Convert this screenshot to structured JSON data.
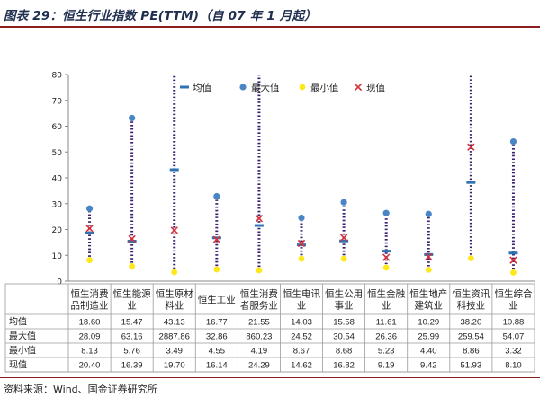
{
  "title": "图表 29：恒生行业指数 PE(TTM)（自 07 年 1 月起）",
  "source": "资料来源：Wind、国金证券研究所",
  "colors": {
    "range_line": "#3a2070",
    "avg_marker": "#2e74b5",
    "max_marker": "#4a86c5",
    "min_marker": "#ffe81a",
    "cur_marker": "#d6303a",
    "title_color": "#1f2d4f",
    "rule_color": "#8a1e1e"
  },
  "chart_data": {
    "type": "table",
    "chart_kind": "range-dot",
    "title": "图表 29：恒生行业指数 PE(TTM)（自 07 年 1 月起）",
    "ylim": [
      0,
      80
    ],
    "yticks": [
      0,
      10,
      20,
      30,
      40,
      50,
      60,
      70,
      80
    ],
    "grid": false,
    "legend_position": "top-right",
    "legend": [
      "均值",
      "最大值",
      "最小值",
      "现值"
    ],
    "categories": [
      [
        "恒生消费",
        "品制造业"
      ],
      [
        "恒生能源",
        "业"
      ],
      [
        "恒生原材",
        "料业"
      ],
      [
        "恒生工业"
      ],
      [
        "恒生消费",
        "者服务业"
      ],
      [
        "恒生电讯",
        "业"
      ],
      [
        "恒生公用",
        "事业"
      ],
      [
        "恒生金融",
        "业"
      ],
      [
        "恒生地产",
        "建筑业"
      ],
      [
        "恒生资讯",
        "科技业"
      ],
      [
        "恒生综合",
        "业"
      ]
    ],
    "series": [
      {
        "name": "均值",
        "values": [
          18.6,
          15.47,
          43.13,
          16.77,
          21.55,
          14.03,
          15.58,
          11.61,
          10.29,
          38.2,
          10.88
        ],
        "labels": [
          "18.60",
          "15.47",
          "43.13",
          "16.77",
          "21.55",
          "14.03",
          "15.58",
          "11.61",
          "10.29",
          "38.20",
          "10.88"
        ]
      },
      {
        "name": "最大值",
        "values": [
          28.09,
          63.16,
          2887.86,
          32.86,
          860.23,
          24.52,
          30.54,
          26.36,
          25.99,
          259.54,
          54.07
        ],
        "labels": [
          "28.09",
          "63.16",
          "2887.86",
          "32.86",
          "860.23",
          "24.52",
          "30.54",
          "26.36",
          "25.99",
          "259.54",
          "54.07"
        ]
      },
      {
        "name": "最小值",
        "values": [
          8.13,
          5.76,
          3.49,
          4.55,
          4.19,
          8.67,
          8.68,
          5.23,
          4.4,
          8.86,
          3.32
        ],
        "labels": [
          "8.13",
          "5.76",
          "3.49",
          "4.55",
          "4.19",
          "8.67",
          "8.68",
          "5.23",
          "4.40",
          "8.86",
          "3.32"
        ]
      },
      {
        "name": "现值",
        "values": [
          20.4,
          16.39,
          19.7,
          16.14,
          24.29,
          14.62,
          16.82,
          9.19,
          9.42,
          51.93,
          8.1
        ],
        "labels": [
          "20.40",
          "16.39",
          "19.70",
          "16.14",
          "24.29",
          "14.62",
          "16.82",
          "9.19",
          "9.42",
          "51.93",
          "8.10"
        ]
      }
    ]
  }
}
